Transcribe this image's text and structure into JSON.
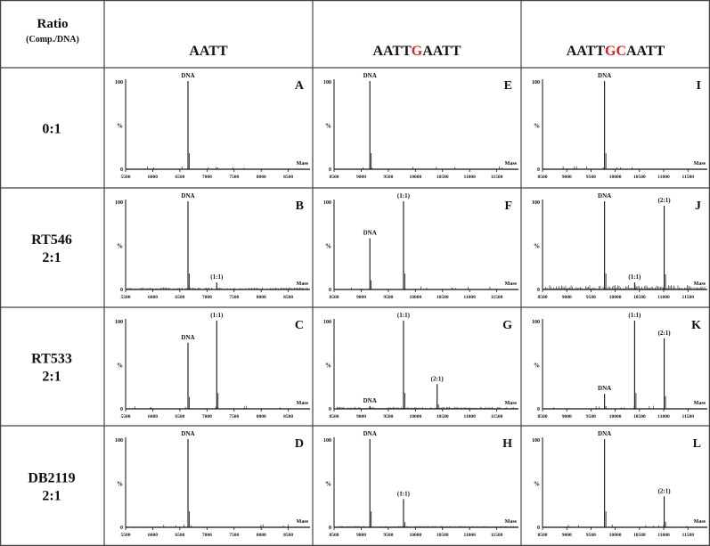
{
  "header": {
    "corner_title": "Ratio",
    "corner_sub": "(Comp./DNA)",
    "columns": [
      {
        "segments": [
          {
            "text": "AATT",
            "color": "#111111"
          }
        ]
      },
      {
        "segments": [
          {
            "text": "AATT",
            "color": "#111111"
          },
          {
            "text": "G",
            "color": "#e0201b"
          },
          {
            "text": "AATT",
            "color": "#111111"
          }
        ]
      },
      {
        "segments": [
          {
            "text": "AATT",
            "color": "#111111"
          },
          {
            "text": "GC",
            "color": "#e0201b"
          },
          {
            "text": "AATT",
            "color": "#111111"
          }
        ]
      }
    ]
  },
  "rows": [
    {
      "lines": [
        "0:1"
      ]
    },
    {
      "lines": [
        "RT546",
        "2:1"
      ]
    },
    {
      "lines": [
        "RT533",
        "2:1"
      ]
    },
    {
      "lines": [
        "DB2119",
        "2:1"
      ]
    }
  ],
  "colors": {
    "complex11": "#3b3ba0",
    "complex21": "#e0201b",
    "ink": "#111111"
  },
  "axis_text": {
    "ytop": "100",
    "ymid": "%",
    "ybottom": "0",
    "xunit": "Mass"
  },
  "x_ticks": [
    [
      "5500",
      "6000",
      "6500",
      "7000",
      "7500",
      "8000",
      "8500"
    ],
    [
      "8500",
      "9000",
      "9500",
      "10000",
      "10500",
      "11000",
      "11500"
    ],
    [
      "8500",
      "9000",
      "9500",
      "10000",
      "10500",
      "11000",
      "11500"
    ]
  ],
  "chart_data": {
    "type": "line",
    "x_label": "Mass",
    "y_label": "%",
    "y_range": [
      0,
      100
    ],
    "panels": [
      {
        "id": "A",
        "row": 0,
        "col": 0,
        "xlim": [
          5500,
          8900
        ],
        "peaks": [
          {
            "mass": 6650,
            "value": 100,
            "label": "DNA",
            "color": "ink"
          }
        ]
      },
      {
        "id": "E",
        "row": 0,
        "col": 1,
        "xlim": [
          8500,
          11900
        ],
        "peaks": [
          {
            "mass": 9160,
            "value": 100,
            "label": "DNA",
            "color": "ink"
          }
        ]
      },
      {
        "id": "I",
        "row": 0,
        "col": 2,
        "xlim": [
          8500,
          11900
        ],
        "peaks": [
          {
            "mass": 9780,
            "value": 100,
            "label": "DNA",
            "color": "ink"
          }
        ]
      },
      {
        "id": "B",
        "row": 1,
        "col": 0,
        "xlim": [
          5500,
          8900
        ],
        "noise": 2,
        "peaks": [
          {
            "mass": 6650,
            "value": 100,
            "label": "DNA",
            "color": "ink"
          },
          {
            "mass": 7180,
            "value": 8,
            "label": "(1:1)",
            "color": "complex11"
          }
        ]
      },
      {
        "id": "F",
        "row": 1,
        "col": 1,
        "xlim": [
          8500,
          11900
        ],
        "peaks": [
          {
            "mass": 9160,
            "value": 58,
            "label": "DNA",
            "color": "ink"
          },
          {
            "mass": 9780,
            "value": 100,
            "label": "(1:1)",
            "color": "complex11"
          }
        ]
      },
      {
        "id": "J",
        "row": 1,
        "col": 2,
        "xlim": [
          8500,
          11900
        ],
        "noise": 5,
        "peaks": [
          {
            "mass": 9780,
            "value": 100,
            "label": "DNA",
            "color": "ink"
          },
          {
            "mass": 10400,
            "value": 8,
            "label": "(1:1)",
            "color": "complex11"
          },
          {
            "mass": 11010,
            "value": 95,
            "label": "(2:1)",
            "color": "complex21"
          }
        ]
      },
      {
        "id": "C",
        "row": 2,
        "col": 0,
        "xlim": [
          5500,
          8900
        ],
        "peaks": [
          {
            "mass": 6650,
            "value": 75,
            "label": "DNA",
            "color": "ink"
          },
          {
            "mass": 7180,
            "value": 100,
            "label": "(1:1)",
            "color": "complex11"
          }
        ]
      },
      {
        "id": "G",
        "row": 2,
        "col": 1,
        "xlim": [
          8500,
          11900
        ],
        "noise": 2,
        "peaks": [
          {
            "mass": 9160,
            "value": 3,
            "label": "DNA",
            "color": "ink"
          },
          {
            "mass": 9780,
            "value": 100,
            "label": "(1:1)",
            "color": "complex11"
          },
          {
            "mass": 10400,
            "value": 28,
            "label": "(2:1)",
            "color": "complex21"
          }
        ]
      },
      {
        "id": "K",
        "row": 2,
        "col": 2,
        "xlim": [
          8500,
          11900
        ],
        "peaks": [
          {
            "mass": 9780,
            "value": 17,
            "label": "DNA",
            "color": "ink"
          },
          {
            "mass": 10400,
            "value": 100,
            "label": "(1:1)",
            "color": "complex11"
          },
          {
            "mass": 11010,
            "value": 80,
            "label": "(2:1)",
            "color": "complex21"
          }
        ]
      },
      {
        "id": "D",
        "row": 3,
        "col": 0,
        "xlim": [
          5500,
          8900
        ],
        "peaks": [
          {
            "mass": 6650,
            "value": 100,
            "label": "DNA",
            "color": "ink"
          }
        ]
      },
      {
        "id": "H",
        "row": 3,
        "col": 1,
        "xlim": [
          8500,
          11900
        ],
        "noise": 1,
        "peaks": [
          {
            "mass": 9160,
            "value": 100,
            "label": "DNA",
            "color": "ink"
          },
          {
            "mass": 9780,
            "value": 32,
            "label": "(1:1)",
            "color": "complex11"
          }
        ]
      },
      {
        "id": "L",
        "row": 3,
        "col": 2,
        "xlim": [
          8500,
          11900
        ],
        "peaks": [
          {
            "mass": 9780,
            "value": 100,
            "label": "DNA",
            "color": "ink"
          },
          {
            "mass": 11010,
            "value": 35,
            "label": "(2:1)",
            "color": "complex21"
          }
        ]
      }
    ]
  }
}
